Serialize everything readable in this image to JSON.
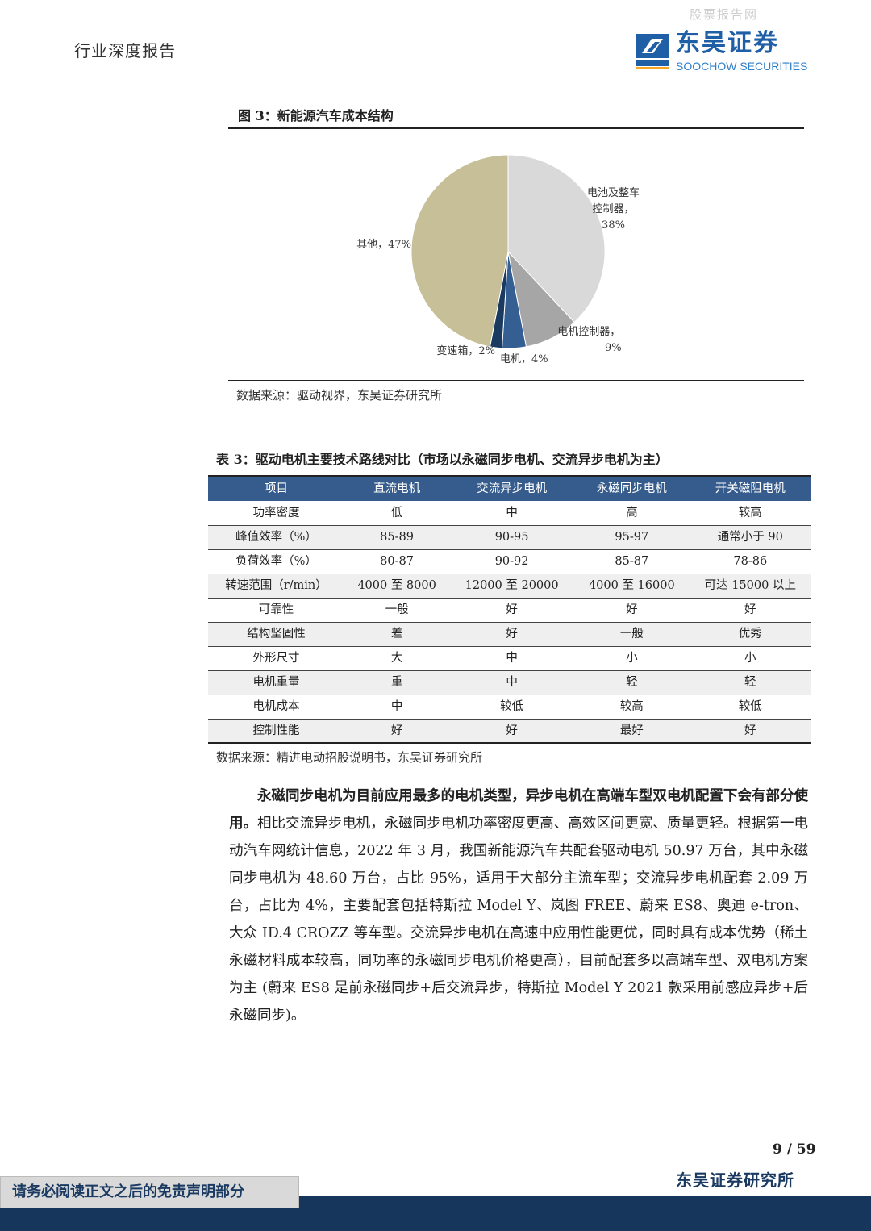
{
  "header": {
    "report_type": "行业深度报告",
    "watermark": "股票报告网",
    "logo_cn": "东吴证券",
    "logo_en": "SOOCHOW SECURITIES",
    "logo_mark": "SCS"
  },
  "figure": {
    "title": "图 3：新能源汽车成本结构",
    "source": "数据来源：驱动视界，东吴证券研究所",
    "chart_data": {
      "type": "pie",
      "slices": [
        {
          "label": "电池及整车控制器",
          "value": 38,
          "color": "#d9d9d9"
        },
        {
          "label": "电机控制器",
          "value": 9,
          "color": "#a6a6a6"
        },
        {
          "label": "电机",
          "value": 4,
          "color": "#355e92"
        },
        {
          "label": "变速箱",
          "value": 2,
          "color": "#1b3a60"
        },
        {
          "label": "其他",
          "value": 47,
          "color": "#c6bf97"
        }
      ],
      "labels": [
        "电池及整车",
        "控制器，",
        "38%",
        "电机控制器，",
        "9%",
        "电机，4%",
        "变速箱，2%",
        "其他，47%"
      ]
    }
  },
  "table": {
    "title": "表 3：驱动电机主要技术路线对比（市场以永磁同步电机、交流异步电机为主）",
    "headers": [
      "项目",
      "直流电机",
      "交流异步电机",
      "永磁同步电机",
      "开关磁阻电机"
    ],
    "rows": [
      [
        "功率密度",
        "低",
        "中",
        "高",
        "较高"
      ],
      [
        "峰值效率（%）",
        "85-89",
        "90-95",
        "95-97",
        "通常小于 90"
      ],
      [
        "负荷效率（%）",
        "80-87",
        "90-92",
        "85-87",
        "78-86"
      ],
      [
        "转速范围（r/min）",
        "4000 至 8000",
        "12000 至 20000",
        "4000 至 16000",
        "可达 15000 以上"
      ],
      [
        "可靠性",
        "一般",
        "好",
        "好",
        "好"
      ],
      [
        "结构坚固性",
        "差",
        "好",
        "一般",
        "优秀"
      ],
      [
        "外形尺寸",
        "大",
        "中",
        "小",
        "小"
      ],
      [
        "电机重量",
        "重",
        "中",
        "轻",
        "轻"
      ],
      [
        "电机成本",
        "中",
        "较低",
        "较高",
        "较低"
      ],
      [
        "控制性能",
        "好",
        "好",
        "最好",
        "好"
      ]
    ],
    "source": "数据来源：精进电动招股说明书，东吴证券研究所"
  },
  "body": {
    "bold": "永磁同步电机为目前应用最多的电机类型，异步电机在高端车型双电机配置下会有部分使用。",
    "text": "相比交流异步电机，永磁同步电机功率密度更高、高效区间更宽、质量更轻。根据第一电动汽车网统计信息，2022 年 3 月，我国新能源汽车共配套驱动电机 50.97 万台，其中永磁同步电机为 48.60 万台，占比 95%，适用于大部分主流车型；交流异步电机配套 2.09 万台，占比为 4%，主要配套包括特斯拉 Model Y、岚图 FREE、蔚来 ES8、奥迪 e-tron、大众 ID.4 CROZZ 等车型。交流异步电机在高速中应用性能更优，同时具有成本优势（稀土永磁材料成本较高，同功率的永磁同步电机价格更高），目前配套多以高端车型、双电机方案为主 (蔚来 ES8 是前永磁同步+后交流异步，特斯拉 Model Y 2021 款采用前感应异步+后永磁同步)。"
  },
  "footer": {
    "page": "9 / 59",
    "firm": "东吴证券研究所",
    "disclaimer": "请务必阅读正文之后的免责声明部分"
  }
}
